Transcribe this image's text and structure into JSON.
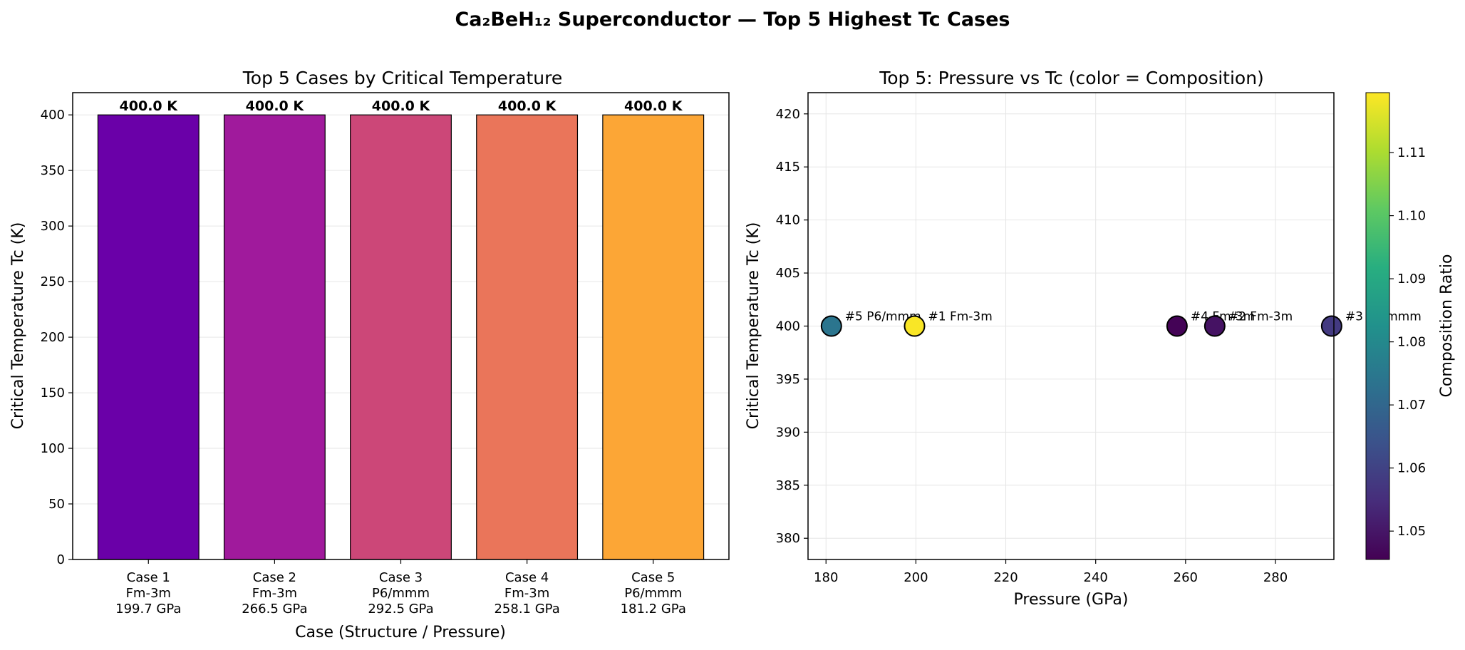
{
  "suptitle": "Ca₂BeH₁₂ Superconductor — Top 5 Highest Tc Cases",
  "chart_data": [
    {
      "type": "bar",
      "title": "Top 5 Cases by Critical Temperature",
      "xlabel": "Case (Structure / Pressure)",
      "ylabel": "Critical Temperature Tc (K)",
      "ylim": [
        0,
        420
      ],
      "yticks": [
        0,
        50,
        100,
        150,
        200,
        250,
        300,
        350,
        400
      ],
      "grid": "y",
      "categories": [
        [
          "Case 1",
          "Fm-3m",
          "199.7 GPa"
        ],
        [
          "Case 2",
          "Fm-3m",
          "266.5 GPa"
        ],
        [
          "Case 3",
          "P6/mmm",
          "292.5 GPa"
        ],
        [
          "Case 4",
          "Fm-3m",
          "258.1 GPa"
        ],
        [
          "Case 5",
          "P6/mmm",
          "181.2 GPa"
        ]
      ],
      "values": [
        400.0,
        400.0,
        400.0,
        400.0,
        400.0
      ],
      "data_labels": [
        "400.0 K",
        "400.0 K",
        "400.0 K",
        "400.0 K",
        "400.0 K"
      ],
      "colors": [
        "#6a00a8",
        "#a01a9c",
        "#cc4778",
        "#ea755a",
        "#fca636"
      ]
    },
    {
      "type": "scatter",
      "title": "Top 5: Pressure vs Tc (color = Composition)",
      "xlabel": "Pressure (GPa)",
      "ylabel": "Critical Temperature Tc (K)",
      "xlim": [
        176,
        293
      ],
      "ylim": [
        378,
        422
      ],
      "xticks": [
        180,
        200,
        220,
        240,
        260,
        280
      ],
      "yticks": [
        380,
        385,
        390,
        395,
        400,
        405,
        410,
        415,
        420
      ],
      "grid": "both",
      "points": [
        {
          "x": 199.7,
          "y": 400,
          "c": 1.119,
          "label": "#1 Fm-3m"
        },
        {
          "x": 266.5,
          "y": 400,
          "c": 1.049,
          "label": "#2 Fm-3m"
        },
        {
          "x": 292.5,
          "y": 400,
          "c": 1.058,
          "label": "#3 P6/mmm"
        },
        {
          "x": 258.1,
          "y": 400,
          "c": 1.046,
          "label": "#4 Fm-3m"
        },
        {
          "x": 181.2,
          "y": 400,
          "c": 1.074,
          "label": "#5 P6/mmm"
        }
      ],
      "colorbar": {
        "label": "Composition Ratio",
        "range": [
          1.0455,
          1.1195
        ],
        "ticks": [
          1.05,
          1.06,
          1.07,
          1.08,
          1.09,
          1.1,
          1.11
        ],
        "tick_labels": [
          "1.05",
          "1.06",
          "1.07",
          "1.08",
          "1.09",
          "1.10",
          "1.11"
        ],
        "colormap": "viridis"
      }
    }
  ]
}
